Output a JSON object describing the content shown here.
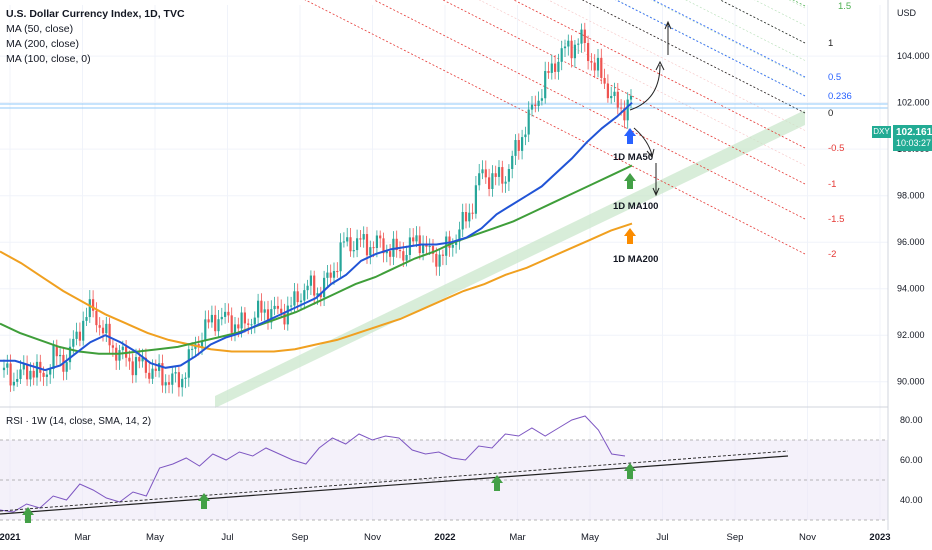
{
  "legend": {
    "title": "U.S. Dollar Currency Index, 1D, TVC",
    "ma50": "MA (50, close)",
    "ma200": "MA (200, close)",
    "ma100": "MA (100, close, 0)"
  },
  "rsi_legend": "RSI · 1W (14, close, SMA, 14, 2)",
  "price_badge": {
    "symbol": "DXY",
    "price": "102.161",
    "time": "10:03:27",
    "color": "#22ab94"
  },
  "annotations": {
    "ma50": "1D MA50",
    "ma100": "1D MA100",
    "ma200": "1D MA200"
  },
  "colors": {
    "ma50": "#2154d6",
    "ma100": "#3f9e3a",
    "ma200": "#f0a020",
    "rsi": "#7e57c2",
    "up": "#26a69a",
    "down": "#ef5350",
    "arrow_blue": "#2962ff",
    "arrow_green": "#43a047",
    "arrow_orange": "#fb8c00"
  },
  "chart_data": {
    "type": "line",
    "y_axis_unit": "USD",
    "ylim": [
      89,
      106.2
    ],
    "price_ticks": [
      "104.000",
      "102.000",
      "100.000",
      "98.000",
      "96.000",
      "94.000",
      "92.000",
      "90.000"
    ],
    "time_ticks": [
      "2021",
      "Mar",
      "May",
      "Jul",
      "Sep",
      "Nov",
      "2022",
      "Mar",
      "May",
      "Jul",
      "Sep",
      "Nov",
      "2023"
    ],
    "fib_channel_levels": [
      "1.5",
      "1",
      "0.5",
      "0.236",
      "0",
      "-0.5",
      "-1",
      "-1.5",
      "-2"
    ],
    "price_close": [
      90.5,
      90.1,
      90.6,
      90.2,
      91.1,
      90.9,
      92.3,
      93.2,
      92.0,
      91.3,
      90.9,
      90.7,
      90.4,
      90.1,
      90.0,
      91.3,
      92.3,
      92.8,
      92.6,
      92.4,
      92.9,
      93.1,
      92.9,
      93.3,
      94.1,
      93.9,
      94.5,
      95.9,
      96.0,
      95.9,
      95.9,
      95.6,
      95.6,
      96.2,
      95.4,
      95.5,
      96.3,
      97.2,
      99.0,
      98.7,
      98.9,
      100.3,
      101.6,
      102.8,
      103.9,
      104.4,
      104.7,
      103.6,
      102.7,
      101.6,
      102.2
    ],
    "ma50": [
      90.9,
      90.9,
      90.7,
      90.5,
      90.7,
      91.2,
      91.7,
      92.0,
      91.7,
      91.3,
      90.8,
      90.6,
      90.7,
      91.1,
      91.6,
      91.9,
      92.1,
      92.4,
      92.7,
      93.0,
      93.3,
      93.6,
      94.2,
      94.6,
      95.2,
      95.5,
      95.7,
      95.8,
      95.9,
      95.9,
      96.0,
      96.2,
      96.6,
      97.2,
      97.6,
      98.0,
      98.4,
      99.0,
      99.6,
      100.3,
      100.9,
      101.4,
      102.0
    ],
    "ma100": [
      92.5,
      92.1,
      91.8,
      91.5,
      91.3,
      91.2,
      91.2,
      91.3,
      91.4,
      91.5,
      91.7,
      91.9,
      92.1,
      92.4,
      92.7,
      93.0,
      93.4,
      93.8,
      94.2,
      94.5,
      94.9,
      95.3,
      95.6,
      96.0,
      96.3,
      96.6,
      96.9,
      97.3,
      97.7,
      98.1,
      98.5,
      98.9,
      99.3
    ],
    "ma200": [
      95.6,
      95.1,
      94.5,
      93.9,
      93.4,
      92.9,
      92.5,
      92.1,
      91.8,
      91.6,
      91.4,
      91.3,
      91.3,
      91.3,
      91.4,
      91.6,
      91.8,
      92.1,
      92.4,
      92.7,
      93.1,
      93.5,
      93.9,
      94.2,
      94.6,
      94.9,
      95.3,
      95.7,
      96.1,
      96.5,
      96.8
    ],
    "rsi": {
      "ylim": [
        30,
        85
      ],
      "ticks": [
        80,
        60,
        40
      ],
      "bands": {
        "upper": 70,
        "middle": 50,
        "lower": 30
      },
      "values": [
        35,
        34,
        38,
        36,
        42,
        40,
        48,
        45,
        41,
        39,
        44,
        42,
        56,
        58,
        61,
        57,
        63,
        60,
        64,
        62,
        66,
        63,
        60,
        58,
        66,
        71,
        68,
        73,
        70,
        72,
        71,
        65,
        63,
        64,
        61,
        60,
        67,
        66,
        73,
        72,
        76,
        72,
        76,
        80,
        82,
        75,
        63,
        62
      ]
    }
  }
}
